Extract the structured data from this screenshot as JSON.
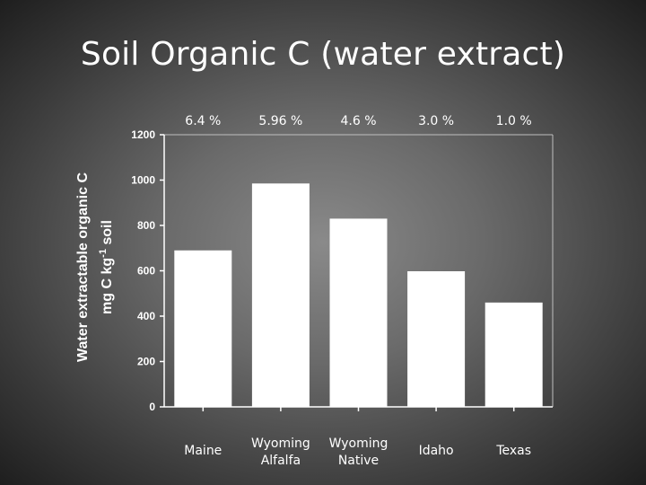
{
  "slide": {
    "title": "Soil Organic C (water extract)"
  },
  "chart_data": {
    "type": "bar",
    "title": "",
    "categories": [
      [
        "Maine"
      ],
      [
        "Wyoming",
        "Alfalfa"
      ],
      [
        "Wyoming",
        "Native"
      ],
      [
        "Idaho"
      ],
      [
        "Texas"
      ]
    ],
    "values": [
      690,
      985,
      830,
      598,
      460
    ],
    "bar_annotations": [
      "6.4 %",
      "5.96 %",
      "4.6 %",
      "3.0 %",
      "1.0 %"
    ],
    "ylabel_line1": "Water extractable organic C",
    "ylabel_line2_prefix": "mg C kg",
    "ylabel_line2_superscript": "-1",
    "ylabel_line2_suffix": " soil",
    "ylim": [
      0,
      1200
    ],
    "yticks": [
      0,
      200,
      400,
      600,
      800,
      1000,
      1200
    ],
    "grid": false,
    "colors": {
      "bar": "#ffffff",
      "axis": "#ffffff",
      "text": "#ffffff"
    }
  }
}
